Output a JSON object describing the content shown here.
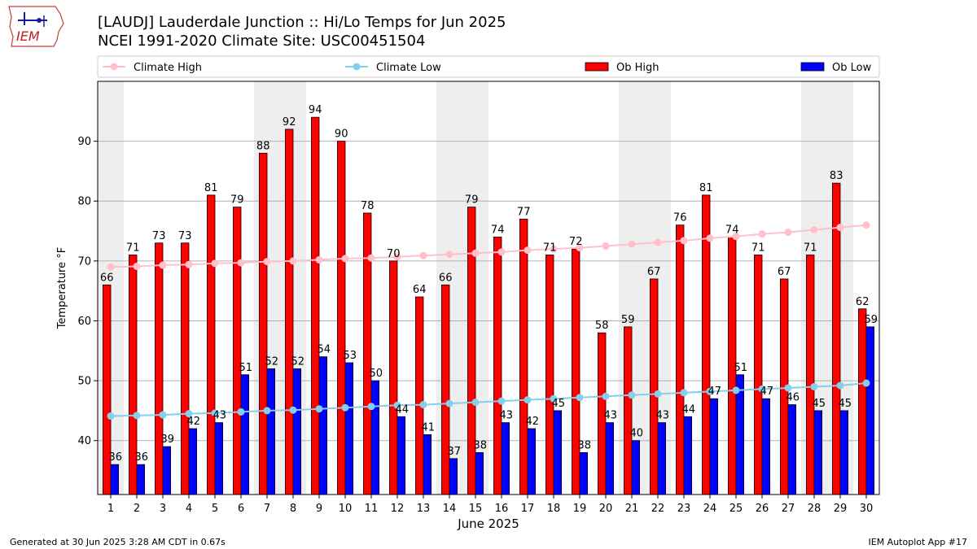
{
  "header": {
    "title_line1": "[LAUDJ] Lauderdale Junction  :: Hi/Lo Temps for Jun 2025",
    "title_line2": "NCEI 1991-2020 Climate Site: USC00451504",
    "logo_text": "IEM"
  },
  "footer": {
    "generated": "Generated at 30 Jun 2025 3:28 AM CDT in 0.67s",
    "app": "IEM Autoplot App #17"
  },
  "colors": {
    "ob_high": "#ff0000",
    "ob_low": "#0000ff",
    "climate_high": "#ffc0cb",
    "climate_low": "#87ceeb",
    "weekend_band": "#eeeeee",
    "grid": "#b0b0b0"
  },
  "chart_data": {
    "type": "bar",
    "xlabel": "June 2025",
    "ylabel": "Temperature °F",
    "ylim": [
      31,
      100
    ],
    "yticks": [
      40,
      50,
      60,
      70,
      80,
      90
    ],
    "grid": "horizontal",
    "legend_position": "top",
    "categories": [
      "1",
      "2",
      "3",
      "4",
      "5",
      "6",
      "7",
      "8",
      "9",
      "10",
      "11",
      "12",
      "13",
      "14",
      "15",
      "16",
      "17",
      "18",
      "19",
      "20",
      "21",
      "22",
      "23",
      "24",
      "25",
      "26",
      "27",
      "28",
      "29",
      "30"
    ],
    "shaded_days": [
      1,
      7,
      8,
      14,
      15,
      21,
      22,
      28,
      29
    ],
    "series": [
      {
        "name": "Ob High",
        "kind": "bar",
        "values": [
          66,
          71,
          73,
          73,
          81,
          79,
          88,
          92,
          94,
          90,
          78,
          70,
          64,
          66,
          79,
          74,
          77,
          71,
          72,
          58,
          59,
          67,
          76,
          81,
          74,
          71,
          67,
          71,
          83,
          62
        ]
      },
      {
        "name": "Ob Low",
        "kind": "bar",
        "values": [
          36,
          36,
          39,
          42,
          43,
          51,
          52,
          52,
          54,
          53,
          50,
          44,
          41,
          37,
          38,
          43,
          42,
          45,
          38,
          43,
          40,
          43,
          44,
          47,
          51,
          47,
          46,
          45,
          45,
          59
        ]
      },
      {
        "name": "Climate High",
        "kind": "line",
        "values": [
          69.0,
          69.1,
          69.3,
          69.4,
          69.6,
          69.7,
          69.9,
          70.0,
          70.2,
          70.4,
          70.5,
          70.7,
          70.9,
          71.1,
          71.3,
          71.5,
          71.8,
          72.0,
          72.2,
          72.5,
          72.8,
          73.1,
          73.4,
          73.8,
          74.1,
          74.5,
          74.8,
          75.2,
          75.6,
          76.0
        ]
      },
      {
        "name": "Climate Low",
        "kind": "line",
        "values": [
          44.1,
          44.2,
          44.3,
          44.5,
          44.6,
          44.8,
          45.0,
          45.1,
          45.3,
          45.5,
          45.7,
          45.9,
          46.0,
          46.2,
          46.4,
          46.6,
          46.8,
          47.0,
          47.2,
          47.4,
          47.6,
          47.8,
          48.0,
          48.2,
          48.4,
          48.6,
          48.8,
          49.0,
          49.2,
          49.6
        ]
      }
    ]
  }
}
